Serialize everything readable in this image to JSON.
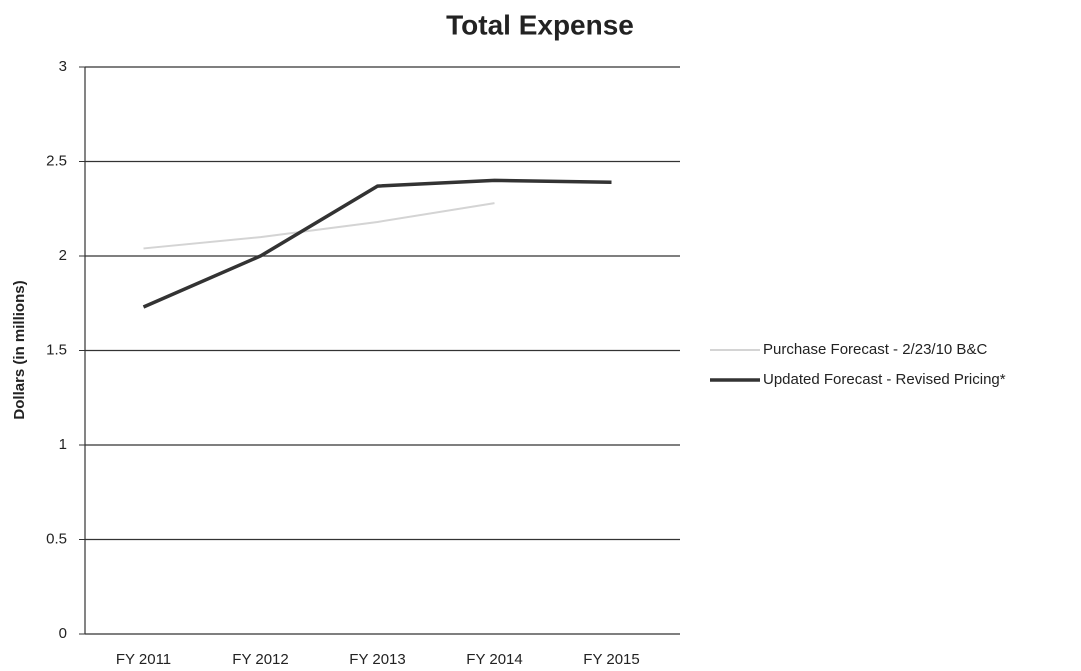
{
  "chart_data": {
    "type": "line",
    "title": "Total Expense",
    "y_label": "Dollars (in millions)",
    "categories": [
      "FY 2011",
      "FY 2012",
      "FY 2013",
      "FY 2014",
      "FY 2015"
    ],
    "series": [
      {
        "name": "Purchase Forecast - 2/23/10 B&C",
        "color": "#d4d4d4",
        "values": [
          2.04,
          2.1,
          2.18,
          2.28,
          null
        ]
      },
      {
        "name": "Updated Forecast - Revised Pricing*",
        "color": "#333333",
        "values": [
          1.73,
          2.0,
          2.37,
          2.4,
          2.39
        ]
      }
    ],
    "ylim": [
      0,
      3
    ],
    "yticks": [
      0,
      0.5,
      1,
      1.5,
      2,
      2.5,
      3
    ],
    "grid": true,
    "legend": "right"
  }
}
